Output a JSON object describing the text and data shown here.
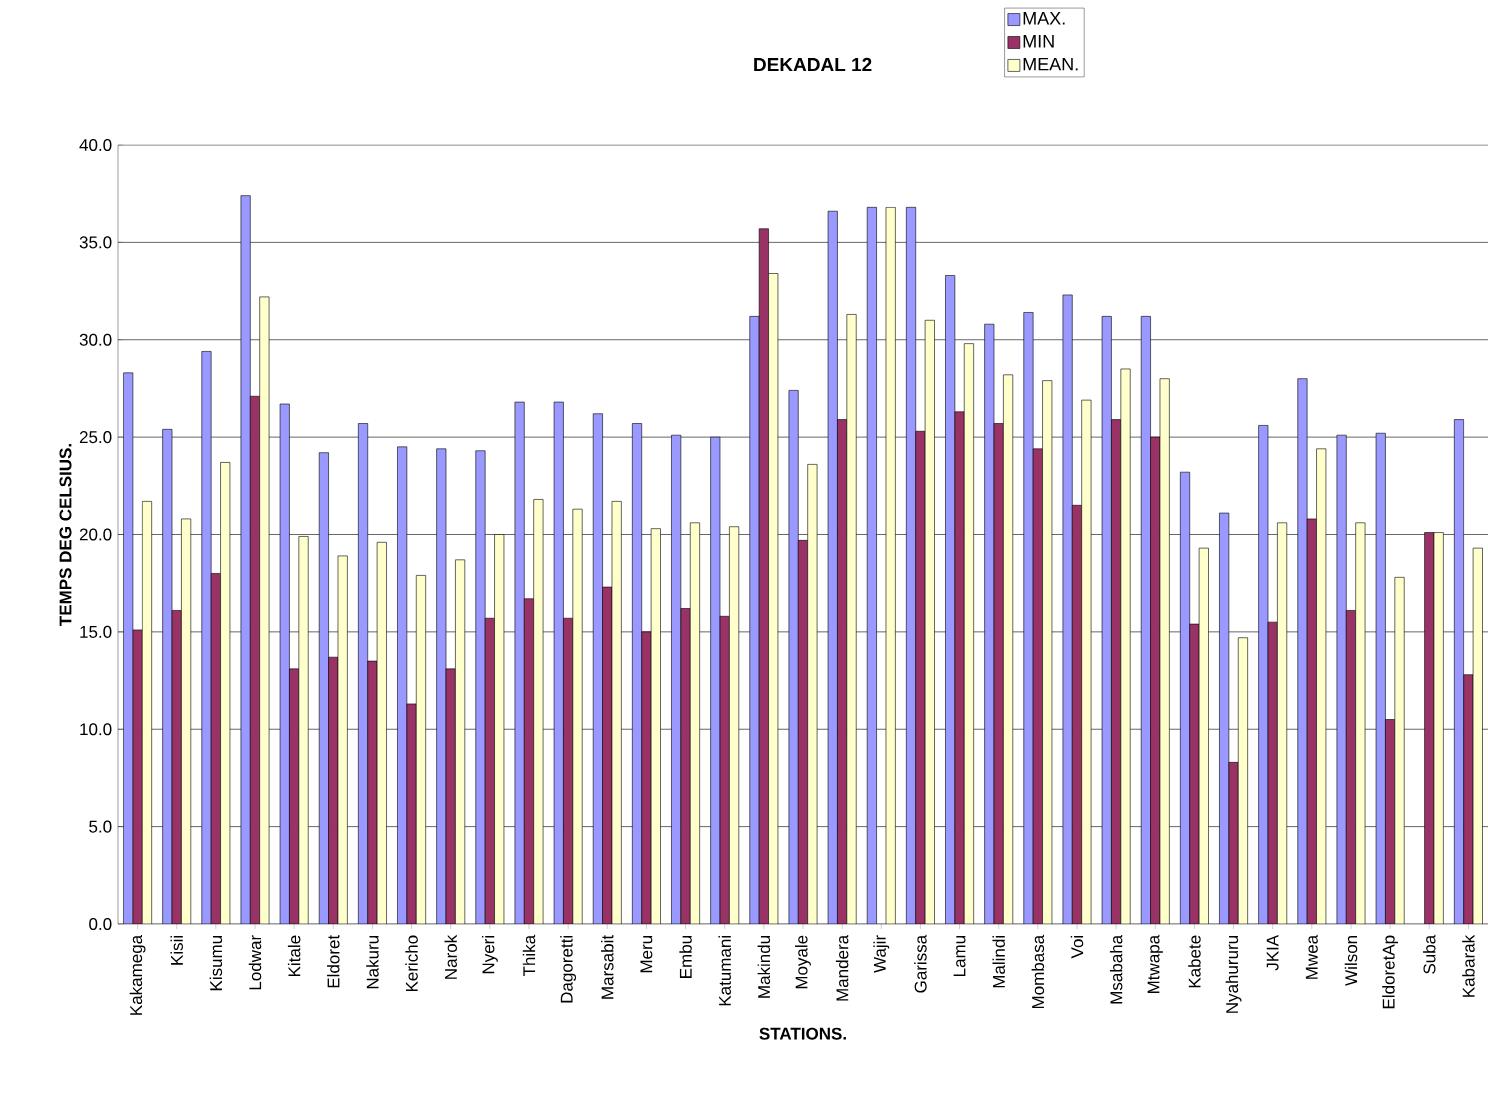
{
  "chart_data": {
    "type": "bar",
    "title": "DEKADAL 12",
    "xlabel": "STATIONS.",
    "ylabel": "TEMPS DEG CELSIUS.",
    "categories": [
      "Kakamega",
      "Kisii",
      "Kisumu",
      "Lodwar",
      "Kitale",
      "Eldoret",
      "Nakuru",
      "Kericho",
      "Narok",
      "Nyeri",
      "Thika",
      "Dagoretti",
      "Marsabit",
      "Meru",
      "Embu",
      "Katumani",
      "Makindu",
      "Moyale",
      "Mandera",
      "Wajir",
      "Garissa",
      "Lamu",
      "Malindi",
      "Mombasa",
      "Voi",
      "Msabaha",
      "Mtwapa",
      "Kabete",
      "Nyahururu",
      "JKIA",
      "Mwea",
      "Wilson",
      "EldoretAp",
      "Suba",
      "Kabarak"
    ],
    "series": [
      {
        "name": "MAX.",
        "color": "#9999ff",
        "values": [
          28.3,
          25.4,
          29.4,
          37.4,
          26.7,
          24.2,
          25.7,
          24.5,
          24.4,
          24.3,
          26.8,
          26.8,
          26.2,
          25.7,
          25.1,
          25.0,
          31.2,
          27.4,
          36.6,
          36.8,
          36.8,
          33.3,
          30.8,
          31.4,
          32.3,
          31.2,
          31.2,
          23.2,
          21.1,
          25.6,
          28.0,
          25.1,
          25.2,
          null,
          25.9
        ]
      },
      {
        "name": "MIN",
        "color": "#993366",
        "values": [
          15.1,
          16.1,
          18.0,
          27.1,
          13.1,
          13.7,
          13.5,
          11.3,
          13.1,
          15.7,
          16.7,
          15.7,
          17.3,
          15.0,
          16.2,
          15.8,
          35.7,
          19.7,
          25.9,
          null,
          25.3,
          26.3,
          25.7,
          24.4,
          21.5,
          25.9,
          25.0,
          15.4,
          8.3,
          15.5,
          20.8,
          16.1,
          10.5,
          20.1,
          12.8
        ]
      },
      {
        "name": "MEAN.",
        "color": "#ffffcc",
        "values": [
          21.7,
          20.8,
          23.7,
          32.2,
          19.9,
          18.9,
          19.6,
          17.9,
          18.7,
          20.0,
          21.8,
          21.3,
          21.7,
          20.3,
          20.6,
          20.4,
          33.4,
          23.6,
          31.3,
          36.8,
          31.0,
          29.8,
          28.2,
          27.9,
          26.9,
          28.5,
          28.0,
          19.3,
          14.7,
          20.6,
          24.4,
          20.6,
          17.8,
          20.1,
          19.3
        ]
      }
    ],
    "ylim": [
      0,
      40
    ],
    "yticks": [
      {
        "value": 0,
        "label": "0.0"
      },
      {
        "value": 5,
        "label": "5.0"
      },
      {
        "value": 10,
        "label": "10.0"
      },
      {
        "value": 15,
        "label": "15.0"
      },
      {
        "value": 20,
        "label": "20.0"
      },
      {
        "value": 25,
        "label": "25.0"
      },
      {
        "value": 30,
        "label": "30.0"
      },
      {
        "value": 35,
        "label": "35.0"
      },
      {
        "value": 40,
        "label": "40.0"
      }
    ],
    "grid": "y",
    "legend": "top"
  }
}
